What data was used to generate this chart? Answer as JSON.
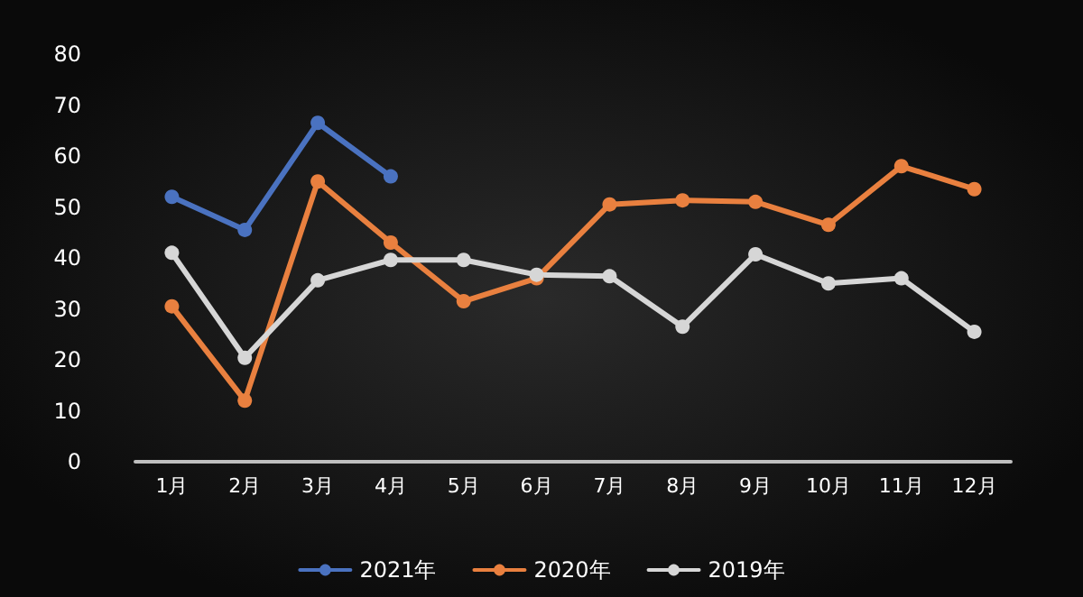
{
  "chart_data": {
    "type": "line",
    "categories": [
      "1月",
      "2月",
      "3月",
      "4月",
      "5月",
      "6月",
      "7月",
      "8月",
      "9月",
      "10月",
      "11月",
      "12月"
    ],
    "series": [
      {
        "name": "2021年",
        "color": "#4a72c0",
        "values": [
          52,
          45.5,
          66.5,
          56,
          null,
          null,
          null,
          null,
          null,
          null,
          null,
          null
        ]
      },
      {
        "name": "2020年",
        "color": "#e9803f",
        "values": [
          30.5,
          12,
          55,
          43,
          31.5,
          36,
          50.5,
          51.3,
          51,
          46.5,
          58,
          53.5
        ]
      },
      {
        "name": "2019年",
        "color": "#d6d6d6",
        "values": [
          41,
          20.4,
          35.6,
          39.6,
          39.6,
          36.7,
          36.4,
          26.5,
          40.7,
          35,
          36,
          25.5
        ]
      }
    ],
    "ylim": [
      0,
      80
    ],
    "yticks": [
      0,
      10,
      20,
      30,
      40,
      50,
      60,
      70,
      80
    ],
    "grid": false,
    "legend": "bottom",
    "marker": "circle",
    "line_style": "solid"
  }
}
